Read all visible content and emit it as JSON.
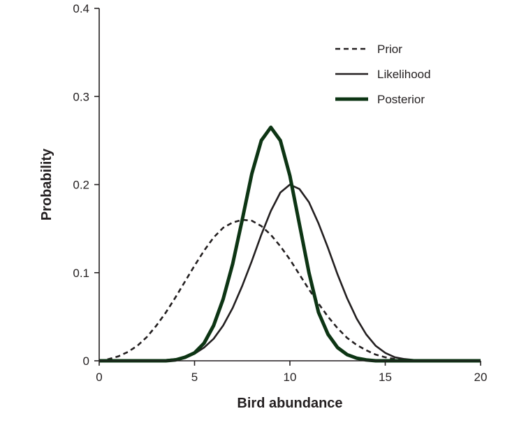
{
  "chart_data": {
    "type": "line",
    "xlabel": "Bird abundance",
    "ylabel": "Probability",
    "xlim": [
      0,
      20
    ],
    "ylim": [
      0,
      0.4
    ],
    "xticks": [
      0,
      5,
      10,
      15,
      20
    ],
    "xtick_labels": [
      "0",
      "5",
      "10",
      "15",
      "20"
    ],
    "yticks": [
      0,
      0.1,
      0.2,
      0.3,
      0.4
    ],
    "ytick_labels": [
      "0",
      "0.1",
      "0.2",
      "0.3",
      "0.4"
    ],
    "grid": false,
    "legend_position": "top-right",
    "x": [
      0,
      0.5,
      1,
      1.5,
      2,
      2.5,
      3,
      3.5,
      4,
      4.5,
      5,
      5.5,
      6,
      6.5,
      7,
      7.5,
      8,
      8.5,
      9,
      9.5,
      10,
      10.5,
      11,
      11.5,
      12,
      12.5,
      13,
      13.5,
      14,
      14.5,
      15,
      15.5,
      16,
      16.5,
      17,
      17.5,
      18,
      18.5,
      19,
      19.5,
      20
    ],
    "series": [
      {
        "name": "Prior",
        "style": "dashed",
        "color": "#231f20",
        "values": [
          0.0,
          0.002,
          0.005,
          0.01,
          0.017,
          0.027,
          0.04,
          0.055,
          0.072,
          0.09,
          0.108,
          0.125,
          0.14,
          0.151,
          0.157,
          0.16,
          0.159,
          0.153,
          0.143,
          0.13,
          0.115,
          0.098,
          0.081,
          0.065,
          0.05,
          0.037,
          0.026,
          0.018,
          0.012,
          0.007,
          0.004,
          0.002,
          0.001,
          0.001,
          0.0,
          0.0,
          0.0,
          0.0,
          0.0,
          0.0,
          0.0
        ]
      },
      {
        "name": "Likelihood",
        "style": "solid",
        "color": "#231f20",
        "values": [
          0.0,
          0.0,
          0.0,
          0.0,
          0.0,
          0.0,
          0.0,
          0.001,
          0.002,
          0.004,
          0.008,
          0.015,
          0.025,
          0.04,
          0.06,
          0.085,
          0.113,
          0.143,
          0.17,
          0.191,
          0.2,
          0.195,
          0.18,
          0.156,
          0.128,
          0.098,
          0.071,
          0.048,
          0.03,
          0.017,
          0.009,
          0.004,
          0.002,
          0.001,
          0.0,
          0.0,
          0.0,
          0.0,
          0.0,
          0.0,
          0.0
        ]
      },
      {
        "name": "Posterior",
        "style": "solid-thick",
        "color": "#0d3514",
        "values": [
          0.0,
          0.0,
          0.0,
          0.0,
          0.0,
          0.0,
          0.0,
          0.0,
          0.001,
          0.004,
          0.009,
          0.02,
          0.04,
          0.07,
          0.11,
          0.16,
          0.212,
          0.25,
          0.265,
          0.25,
          0.21,
          0.155,
          0.1,
          0.055,
          0.03,
          0.015,
          0.007,
          0.003,
          0.001,
          0.0,
          0.0,
          0.0,
          0.0,
          0.0,
          0.0,
          0.0,
          0.0,
          0.0,
          0.0,
          0.0,
          0.0
        ]
      }
    ]
  }
}
